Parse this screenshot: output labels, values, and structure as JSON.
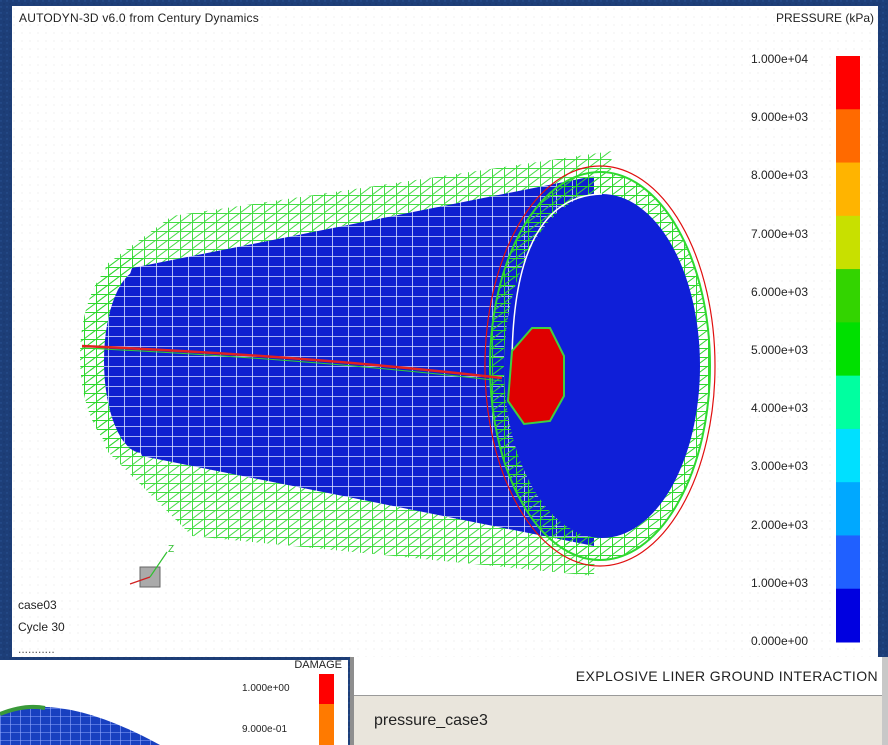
{
  "main_view": {
    "app_title": "AUTODYN-3D v6.0 from Century Dynamics",
    "legend_title": "PRESSURE (kPa)",
    "legend_ticks": [
      "1.000e+04",
      "9.000e+03",
      "8.000e+03",
      "7.000e+03",
      "6.000e+03",
      "5.000e+03",
      "4.000e+03",
      "3.000e+03",
      "2.000e+03",
      "1.000e+03",
      "0.000e+00"
    ],
    "legend_colors": [
      "#ff0000",
      "#ff6a00",
      "#ffb400",
      "#c8e000",
      "#33d400",
      "#00e000",
      "#00ffa0",
      "#00e0ff",
      "#00a8ff",
      "#2060ff",
      "#0000e0"
    ],
    "case_name": "case03",
    "cycle_label": "Cycle 30",
    "trunc_label": "...........",
    "axis_label": "Z"
  },
  "damage_panel": {
    "title": "DAMAGE",
    "ticks": [
      "1.000e+00",
      "9.000e-01"
    ],
    "colors": [
      "#ff0000",
      "#ff7a00"
    ]
  },
  "status_panel": {
    "heading": "EXPLOSIVE LINER GROUND INTERACTION",
    "field_text": "pressure_case3"
  }
}
